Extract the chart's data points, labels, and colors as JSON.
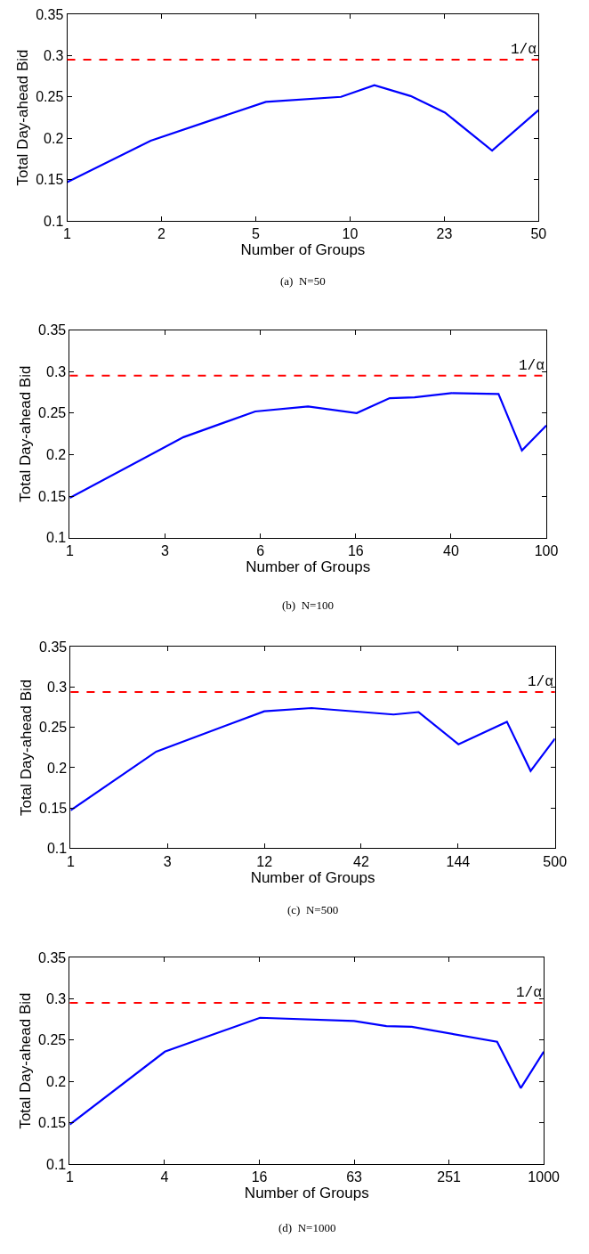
{
  "chart_data": [
    {
      "type": "line",
      "xlabel": "Number of Groups",
      "ylabel": "Total Day-ahead Bid",
      "log": "x",
      "marker": "none",
      "line_style": "solid",
      "x": [
        1,
        2,
        5.2,
        9.7,
        12.8,
        17.3,
        23,
        34,
        50
      ],
      "series": [
        {
          "color": "#0000ff",
          "values": [
            0.147,
            0.197,
            0.244,
            0.25,
            0.264,
            0.251,
            0.231,
            0.185,
            0.234
          ]
        }
      ],
      "xlim": [
        1,
        50
      ],
      "xticks": [
        1,
        {
          "value": 2.187,
          "label": "2"
        },
        {
          "value": 4.782,
          "label": "5"
        },
        {
          "value": 10.46,
          "label": "10"
        },
        {
          "value": 22.87,
          "label": "23"
        },
        50
      ],
      "ylim": [
        0.1,
        0.35
      ],
      "yticks": [
        0.1,
        0.15,
        0.2,
        0.25,
        0.3,
        0.35
      ],
      "ref_lines": [
        {
          "axis": "y",
          "value": 0.295,
          "label": "1/α",
          "color": "#ff0000",
          "line_style": "dashed"
        }
      ],
      "annotations": [
        "(a)  N=50"
      ]
    },
    {
      "type": "line",
      "xlabel": "Number of Groups",
      "ylabel": "Total Day-ahead Bid",
      "log": "x",
      "marker": "none",
      "line_style": "solid",
      "x": [
        1,
        3,
        6,
        10,
        16,
        22,
        28,
        40,
        63,
        79,
        100
      ],
      "series": [
        {
          "color": "#0000ff",
          "values": [
            0.148,
            0.221,
            0.252,
            0.258,
            0.25,
            0.268,
            0.269,
            0.274,
            0.273,
            0.205,
            0.235
          ]
        }
      ],
      "xlim": [
        1,
        100
      ],
      "xticks": [
        1,
        {
          "value": 2.512,
          "label": "3"
        },
        {
          "value": 6.31,
          "label": "6"
        },
        {
          "value": 15.85,
          "label": "16"
        },
        {
          "value": 39.81,
          "label": "40"
        },
        100
      ],
      "ylim": [
        0.1,
        0.35
      ],
      "yticks": [
        0.1,
        0.15,
        0.2,
        0.25,
        0.3,
        0.35
      ],
      "ref_lines": [
        {
          "axis": "y",
          "value": 0.295,
          "label": "1/α",
          "color": "#ff0000",
          "line_style": "dashed"
        }
      ],
      "annotations": [
        "(b)  N=100"
      ]
    },
    {
      "type": "line",
      "xlabel": "Number of Groups",
      "ylabel": "Total Day-ahead Bid",
      "log": "x",
      "marker": "none",
      "line_style": "solid",
      "x": [
        1,
        3,
        12,
        22,
        63,
        87,
        145,
        270,
        366,
        500
      ],
      "series": [
        {
          "color": "#0000ff",
          "values": [
            0.147,
            0.22,
            0.27,
            0.274,
            0.266,
            0.269,
            0.229,
            0.257,
            0.196,
            0.236
          ]
        }
      ],
      "xlim": [
        1,
        500
      ],
      "xticks": [
        1,
        {
          "value": 3.466,
          "label": "3"
        },
        {
          "value": 12.01,
          "label": "12"
        },
        {
          "value": 41.63,
          "label": "42"
        },
        {
          "value": 144.3,
          "label": "144"
        },
        500
      ],
      "ylim": [
        0.1,
        0.35
      ],
      "yticks": [
        0.1,
        0.15,
        0.2,
        0.25,
        0.3,
        0.35
      ],
      "ref_lines": [
        {
          "axis": "y",
          "value": 0.294,
          "label": "1/α",
          "color": "#ff0000",
          "line_style": "dashed"
        }
      ],
      "annotations": [
        "(c)  N=500"
      ]
    },
    {
      "type": "line",
      "xlabel": "Number of Groups",
      "ylabel": "Total Day-ahead Bid",
      "log": "x",
      "marker": "none",
      "line_style": "solid",
      "x": [
        1,
        4,
        16,
        63,
        101,
        146,
        507,
        716,
        1000
      ],
      "series": [
        {
          "color": "#0000ff",
          "values": [
            0.148,
            0.236,
            0.277,
            0.273,
            0.267,
            0.266,
            0.248,
            0.192,
            0.236
          ]
        }
      ],
      "xlim": [
        1,
        1000
      ],
      "xticks": [
        1,
        {
          "value": 3.981,
          "label": "4"
        },
        {
          "value": 15.85,
          "label": "16"
        },
        {
          "value": 63.1,
          "label": "63"
        },
        {
          "value": 251.2,
          "label": "251"
        },
        1000
      ],
      "ylim": [
        0.1,
        0.35
      ],
      "yticks": [
        0.1,
        0.15,
        0.2,
        0.25,
        0.3,
        0.35
      ],
      "ref_lines": [
        {
          "axis": "y",
          "value": 0.295,
          "label": "1/α",
          "color": "#ff0000",
          "line_style": "dashed"
        }
      ],
      "annotations": [
        "(d)  N=1000"
      ]
    }
  ]
}
